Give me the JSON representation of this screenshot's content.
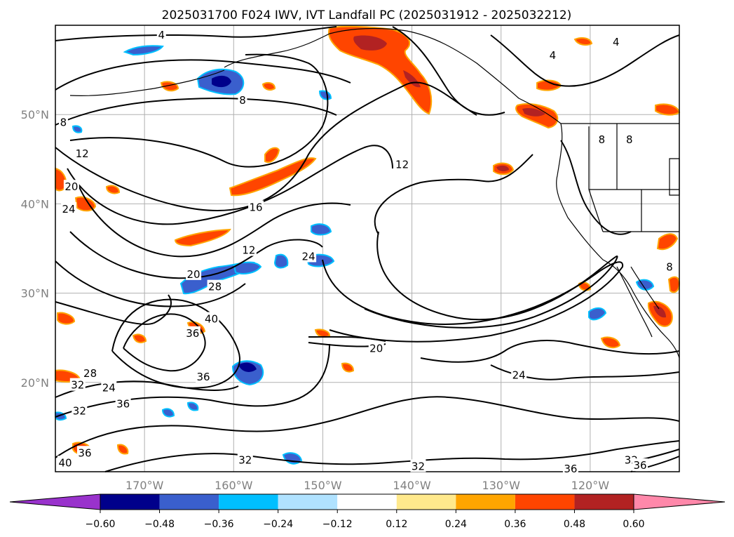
{
  "title": "2025031700 F024 IWV, IVT Landfall PC (2025031912 - 2025032212)",
  "map": {
    "lon_range": [
      -180,
      -110
    ],
    "lat_range": [
      10,
      60
    ],
    "lat_labels": [
      "20°N",
      "30°N",
      "40°N",
      "50°N"
    ],
    "lat_values": [
      20,
      30,
      40,
      50
    ],
    "lon_labels": [
      "170°W",
      "160°W",
      "150°W",
      "140°W",
      "130°W",
      "120°W"
    ],
    "lon_values": [
      -170,
      -160,
      -150,
      -140,
      -130,
      -120
    ],
    "gridlines": true,
    "contour_field": "IWV",
    "contour_labels": [
      {
        "text": "4",
        "lon": -168.1,
        "lat": 58.9
      },
      {
        "text": "8",
        "lon": -159.0,
        "lat": 51.6
      },
      {
        "text": "8",
        "lon": -179.1,
        "lat": 49.1
      },
      {
        "text": "12",
        "lon": -177.0,
        "lat": 45.6
      },
      {
        "text": "20",
        "lon": -178.2,
        "lat": 41.9
      },
      {
        "text": "24",
        "lon": -178.5,
        "lat": 39.4
      },
      {
        "text": "16",
        "lon": -157.5,
        "lat": 39.6
      },
      {
        "text": "12",
        "lon": -158.3,
        "lat": 34.8
      },
      {
        "text": "24",
        "lon": -151.6,
        "lat": 34.1
      },
      {
        "text": "20",
        "lon": -164.5,
        "lat": 32.1
      },
      {
        "text": "28",
        "lon": -162.1,
        "lat": 30.7
      },
      {
        "text": "40",
        "lon": -162.5,
        "lat": 27.1
      },
      {
        "text": "36",
        "lon": -164.6,
        "lat": 25.5
      },
      {
        "text": "36",
        "lon": -163.4,
        "lat": 20.6
      },
      {
        "text": "28",
        "lon": -176.1,
        "lat": 21.0
      },
      {
        "text": "24",
        "lon": -174.0,
        "lat": 19.4
      },
      {
        "text": "32",
        "lon": -177.5,
        "lat": 19.7
      },
      {
        "text": "36",
        "lon": -172.4,
        "lat": 17.6
      },
      {
        "text": "32",
        "lon": -177.3,
        "lat": 16.8
      },
      {
        "text": "36",
        "lon": -176.7,
        "lat": 12.1
      },
      {
        "text": "40",
        "lon": -178.9,
        "lat": 11.0
      },
      {
        "text": "32",
        "lon": -158.7,
        "lat": 11.3
      },
      {
        "text": "20",
        "lon": -144.0,
        "lat": 23.8
      },
      {
        "text": "12",
        "lon": -141.1,
        "lat": 44.4
      },
      {
        "text": "24",
        "lon": -128.0,
        "lat": 20.8
      },
      {
        "text": "32",
        "lon": -139.3,
        "lat": 10.6
      },
      {
        "text": "36",
        "lon": -122.2,
        "lat": 10.3
      },
      {
        "text": "32",
        "lon": -115.4,
        "lat": 11.3
      },
      {
        "text": "36",
        "lon": -114.4,
        "lat": 10.7
      },
      {
        "text": "4",
        "lon": -124.2,
        "lat": 56.6
      },
      {
        "text": "4",
        "lon": -117.1,
        "lat": 58.1
      },
      {
        "text": "8",
        "lon": -115.6,
        "lat": 47.2
      },
      {
        "text": "8",
        "lon": -118.7,
        "lat": 47.2
      },
      {
        "text": "8",
        "lon": -111.1,
        "lat": 32.9
      }
    ],
    "fill_field": "IVT Landfall PC"
  },
  "colorbar": {
    "ticks": [
      "−0.60",
      "−0.48",
      "−0.36",
      "−0.24",
      "−0.12",
      "0.12",
      "0.24",
      "0.36",
      "0.48",
      "0.60"
    ],
    "colors": [
      "#9932cc",
      "#00008b",
      "#3a5fcd",
      "#00bfff",
      "#b0e2ff",
      "#ffffff",
      "#ffe98c",
      "#ffa500",
      "#ff4500",
      "#b22222",
      "#ff88aa"
    ],
    "extend": "both"
  }
}
